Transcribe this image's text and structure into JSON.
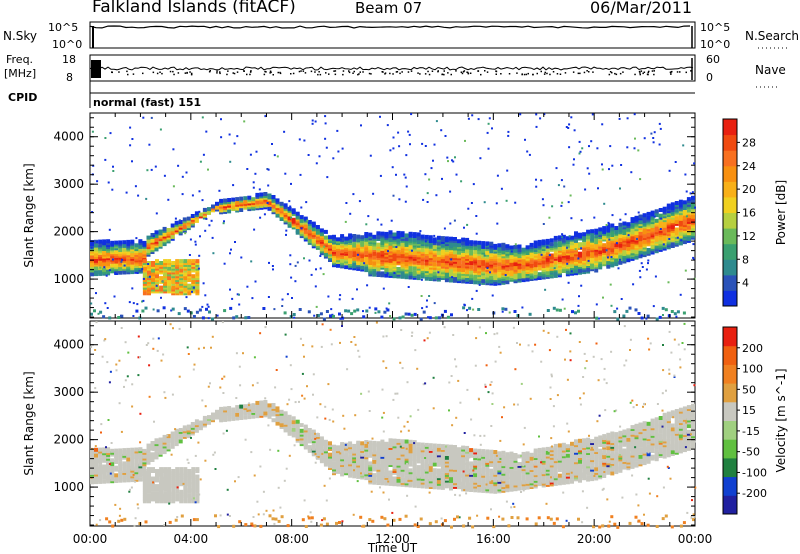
{
  "header": {
    "title": "Falkland Islands (fitACF)",
    "beam": "Beam 07",
    "date": "06/Mar/2011"
  },
  "strips": {
    "nsky_label": "N.Sky",
    "nsky_ticks": [
      "10^5",
      "10^0"
    ],
    "nsearch_label": "N.Search",
    "nsearch_ticks": [
      "10^5",
      "10^0"
    ],
    "freq_label_1": "Freq.",
    "freq_label_2": "[MHz]",
    "freq_ticks": [
      "18",
      "8"
    ],
    "nave_label": "Nave",
    "nave_ticks": [
      "60",
      "0"
    ],
    "cpid_label": "CPID",
    "cpid_value": "normal (fast) 151"
  },
  "chart_data": [
    {
      "type": "heatmap",
      "title": "",
      "xlabel": "",
      "ylabel": "Slant Range [km]",
      "xlim": [
        "00:00",
        "24:00"
      ],
      "ylim": [
        180,
        4500
      ],
      "ytick_labels": [
        "1000",
        "2000",
        "3000",
        "4000"
      ],
      "colorbar": {
        "label": "Power [dB]",
        "ticks": [
          "4",
          "8",
          "12",
          "16",
          "20",
          "24",
          "28"
        ],
        "colors": [
          "#1030e0",
          "#2a52b8",
          "#2e8a8e",
          "#3aa070",
          "#6aba5a",
          "#b6d040",
          "#f0d020",
          "#f8b018",
          "#f89010",
          "#f87020",
          "#f04a10",
          "#e82010"
        ]
      },
      "features": [
        {
          "name": "main echo band",
          "t_start": 0,
          "t_end": 24,
          "range_km": "≈700 – 2800",
          "power_db": "12 – 30"
        },
        {
          "name": "early echo patch",
          "t_start": 2.1,
          "t_end": 4.3,
          "range_km": "≈700 – 1400",
          "power_db": "16 – 28"
        }
      ]
    },
    {
      "type": "heatmap",
      "title": "",
      "xlabel": "Time UT",
      "ylabel": "Slant Range [km]",
      "xlim": [
        "00:00",
        "24:00"
      ],
      "ylim": [
        180,
        4500
      ],
      "ytick_labels": [
        "1000",
        "2000",
        "3000",
        "4000"
      ],
      "xtick_labels": [
        "00:00",
        "04:00",
        "08:00",
        "12:00",
        "16:00",
        "20:00",
        "00:00"
      ],
      "colorbar": {
        "label": "Velocity [m s^-1]",
        "ticks": [
          "200",
          "100",
          "50",
          "15",
          "-15",
          "-50",
          "-100",
          "-200"
        ],
        "colors": [
          "#2020a0",
          "#1040d0",
          "#208040",
          "#60c040",
          "#a0d080",
          "#c8c8c0",
          "#e0a040",
          "#f08020",
          "#f06010",
          "#e82010"
        ]
      },
      "features": [
        {
          "name": "low-velocity band",
          "t_start": 0,
          "t_end": 24,
          "range_km": "≈700 – 2800",
          "velocity_ms": "-15 – 15"
        }
      ]
    }
  ]
}
